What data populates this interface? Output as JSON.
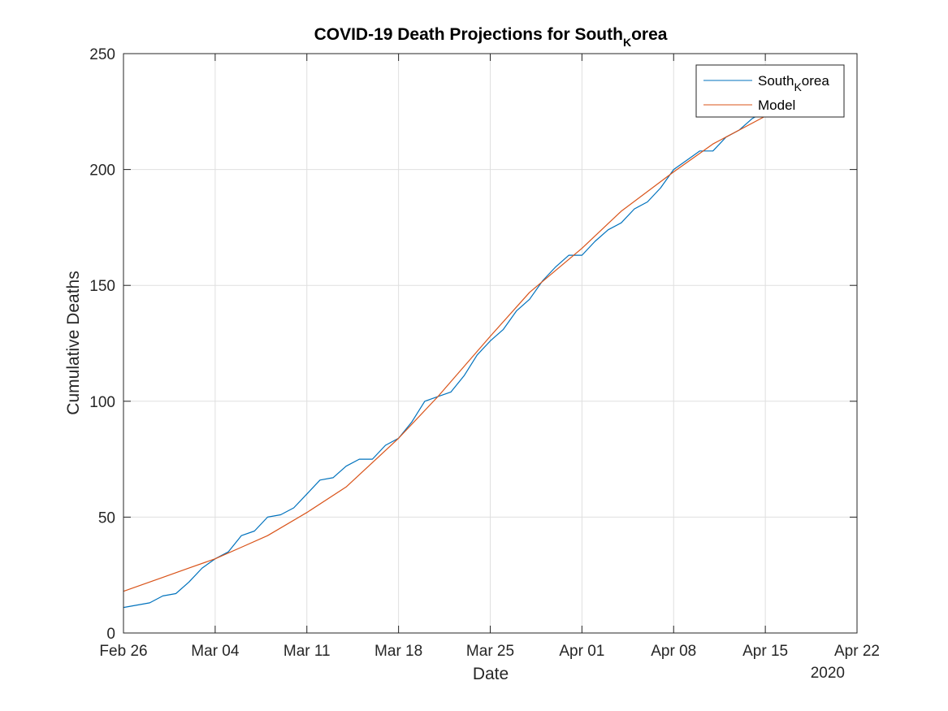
{
  "chart_data": {
    "type": "line",
    "title": {
      "main": "COVID-19 Death Projections for South",
      "subscript": "K",
      "rest": "orea"
    },
    "xlabel": "Date",
    "ylabel": "Cumulative Deaths",
    "x_secondary_label": "2020",
    "xlim": [
      "2020-02-26",
      "2020-04-22"
    ],
    "ylim": [
      0,
      250
    ],
    "grid": true,
    "legend_position": "top-right",
    "x_ticks": [
      {
        "date": "2020-02-26",
        "label": "Feb 26"
      },
      {
        "date": "2020-03-04",
        "label": "Mar 04"
      },
      {
        "date": "2020-03-11",
        "label": "Mar 11"
      },
      {
        "date": "2020-03-18",
        "label": "Mar 18"
      },
      {
        "date": "2020-03-25",
        "label": "Mar 25"
      },
      {
        "date": "2020-04-01",
        "label": "Apr 01"
      },
      {
        "date": "2020-04-08",
        "label": "Apr 08"
      },
      {
        "date": "2020-04-15",
        "label": "Apr 15"
      },
      {
        "date": "2020-04-22",
        "label": "Apr 22"
      }
    ],
    "y_ticks": [
      {
        "value": 0,
        "label": "0"
      },
      {
        "value": 50,
        "label": "50"
      },
      {
        "value": 100,
        "label": "100"
      },
      {
        "value": 150,
        "label": "150"
      },
      {
        "value": 200,
        "label": "200"
      },
      {
        "value": 250,
        "label": "250"
      }
    ],
    "series": [
      {
        "name": {
          "main": "South",
          "subscript": "K",
          "rest": "orea"
        },
        "color": "#0072BD",
        "x": [
          "2020-02-26",
          "2020-02-28",
          "2020-02-29",
          "2020-03-01",
          "2020-03-02",
          "2020-03-03",
          "2020-03-04",
          "2020-03-05",
          "2020-03-06",
          "2020-03-07",
          "2020-03-08",
          "2020-03-09",
          "2020-03-10",
          "2020-03-11",
          "2020-03-12",
          "2020-03-13",
          "2020-03-14",
          "2020-03-15",
          "2020-03-16",
          "2020-03-17",
          "2020-03-18",
          "2020-03-19",
          "2020-03-20",
          "2020-03-21",
          "2020-03-22",
          "2020-03-23",
          "2020-03-24",
          "2020-03-25",
          "2020-03-26",
          "2020-03-27",
          "2020-03-28",
          "2020-03-29",
          "2020-03-30",
          "2020-03-31",
          "2020-04-01",
          "2020-04-02",
          "2020-04-03",
          "2020-04-04",
          "2020-04-05",
          "2020-04-06",
          "2020-04-07",
          "2020-04-08",
          "2020-04-09",
          "2020-04-10",
          "2020-04-11",
          "2020-04-12",
          "2020-04-13",
          "2020-04-14",
          "2020-04-15"
        ],
        "values": [
          11,
          13,
          16,
          17,
          22,
          28,
          32,
          35,
          42,
          44,
          50,
          51,
          54,
          60,
          66,
          67,
          72,
          75,
          75,
          81,
          84,
          91,
          100,
          102,
          104,
          111,
          120,
          126,
          131,
          139,
          144,
          152,
          158,
          163,
          163,
          169,
          174,
          177,
          183,
          186,
          192,
          200,
          204,
          208,
          208,
          214,
          217,
          222,
          225
        ]
      },
      {
        "name": "Model",
        "color": "#D95319",
        "x": [
          "2020-02-26",
          "2020-02-29",
          "2020-03-02",
          "2020-03-04",
          "2020-03-06",
          "2020-03-08",
          "2020-03-11",
          "2020-03-14",
          "2020-03-18",
          "2020-03-21",
          "2020-03-25",
          "2020-03-28",
          "2020-04-01",
          "2020-04-04",
          "2020-04-08",
          "2020-04-11",
          "2020-04-15"
        ],
        "values": [
          18,
          24,
          28,
          32,
          37,
          42,
          52,
          63,
          84,
          102,
          128,
          147,
          166,
          182,
          199,
          211,
          223
        ]
      }
    ]
  }
}
